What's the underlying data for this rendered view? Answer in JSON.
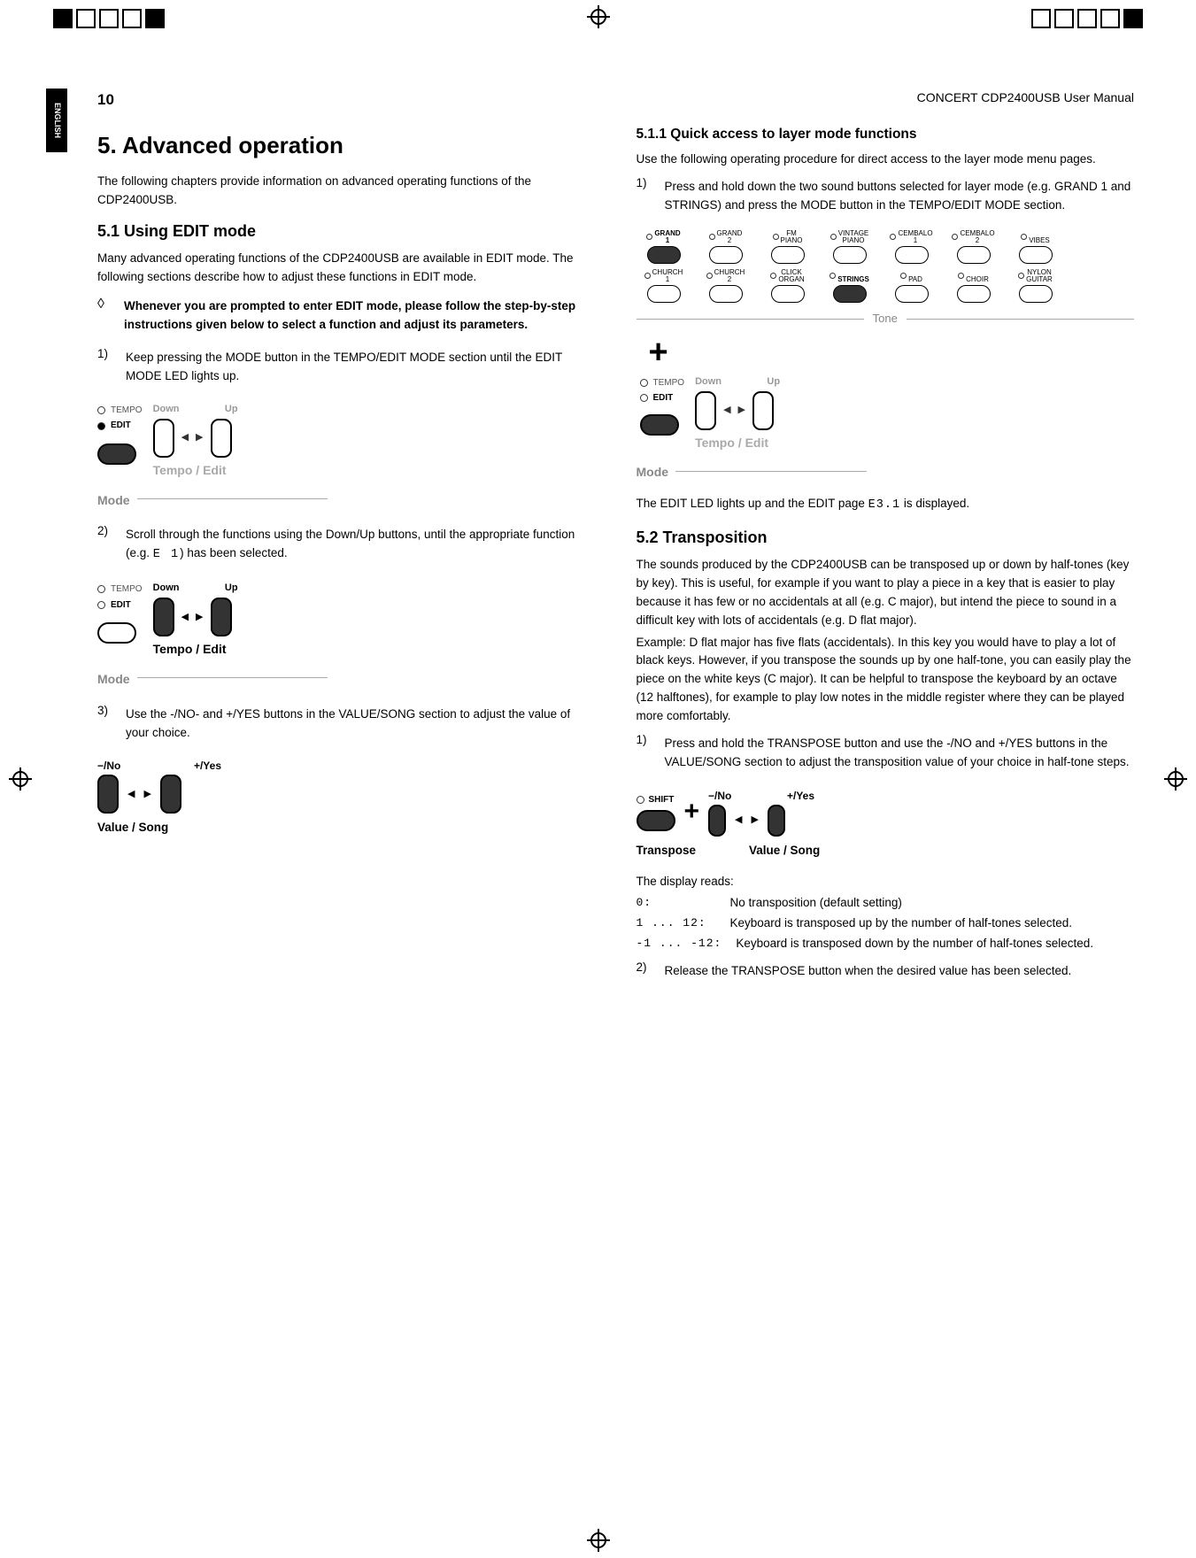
{
  "page_number": "10",
  "header": "CONCERT CDP2400USB User Manual",
  "lang_tab": "ENGLISH",
  "left": {
    "h1": "5.  Advanced operation",
    "intro": "The following chapters provide information on advanced operating functions of the CDP2400USB.",
    "s51_title": "5.1  Using EDIT mode",
    "s51_p1": "Many advanced operating functions of the CDP2400USB are available in EDIT mode. The following sections describe how to adjust these functions in EDIT mode.",
    "diamond_text": "Whenever you are prompted to enter EDIT mode, please follow the step-by-step instructions given below to select a function and adjust its parameters.",
    "step1": "Keep pressing the MODE button in the TEMPO/EDIT MODE section until the EDIT MODE LED lights up.",
    "step2_a": "Scroll through the functions using the Down/Up buttons, until the appropriate function (e.g. ",
    "step2_code": "E 1",
    "step2_b": ") has been selected.",
    "step3": "Use the -/NO- and +/YES buttons in the VALUE/SONG section to adjust the value of your choice.",
    "fig_tempo": "TEMPO",
    "fig_edit": "EDIT",
    "fig_down": "Down",
    "fig_up": "Up",
    "fig_tempoedit": "Tempo / Edit",
    "fig_mode": "Mode",
    "fig_no": "−/No",
    "fig_yes": "+/Yes",
    "fig_valuesong": "Value / Song"
  },
  "right": {
    "s511_title": "5.1.1  Quick access to layer mode functions",
    "s511_p1": "Use the following operating procedure for direct access to the layer mode menu pages.",
    "s511_step1": "Press and hold down the two sound buttons selected for layer mode (e.g. GRAND 1 and STRINGS) and press the MODE button in the TEMPO/EDIT MODE section.",
    "tone_labels_row1": [
      "GRAND 1",
      "GRAND 2",
      "FM PIANO",
      "VINTAGE PIANO",
      "CEMBALO 1",
      "CEMBALO 2",
      "VIBES"
    ],
    "tone_labels_row2": [
      "CHURCH 1",
      "CHURCH 2",
      "CLICK ORGAN",
      "STRINGS",
      "PAD",
      "CHOIR",
      "NYLON GUITAR"
    ],
    "tone_caption": "Tone",
    "s511_result_a": "The EDIT LED lights up and the EDIT page ",
    "s511_result_code": "E3.1",
    "s511_result_b": " is displayed.",
    "s52_title": "5.2  Transposition",
    "s52_p1": "The sounds produced by the CDP2400USB can be transposed up or down by half-tones (key by key). This is useful, for example if you want to play a piece in a key that is easier to play because it has few or no accidentals at all (e.g. C major), but intend the piece to sound in a difficult key with lots of accidentals (e.g. D flat major).",
    "s52_p2": "Example: D flat major has five flats (accidentals). In this key you would have to play a lot of black keys. However, if you transpose the sounds up by one half-tone, you can easily play the piece on the white keys (C major). It can be helpful to transpose the keyboard by an octave (12 halftones), for example to play low notes in the middle register where they can be played more comfortably.",
    "s52_step1": "Press and hold the TRANSPOSE button and use the -/NO and +/YES buttons in the VALUE/SONG section to adjust the transposition value of your choice in half-tone steps.",
    "fig_shift": "SHIFT",
    "fig_transpose": "Transpose",
    "disp_intro": "The display reads:",
    "disp_rows": [
      {
        "k": "0:",
        "v": "No transposition (default setting)"
      },
      {
        "k": "1 ... 12:",
        "v": "Keyboard is transposed up by the number of half-tones selected."
      },
      {
        "k": "-1 ... -12:",
        "v": "Keyboard is transposed down by the number of half-tones selected."
      }
    ],
    "s52_step2": "Release the TRANSPOSE button when the desired value has been selected."
  }
}
